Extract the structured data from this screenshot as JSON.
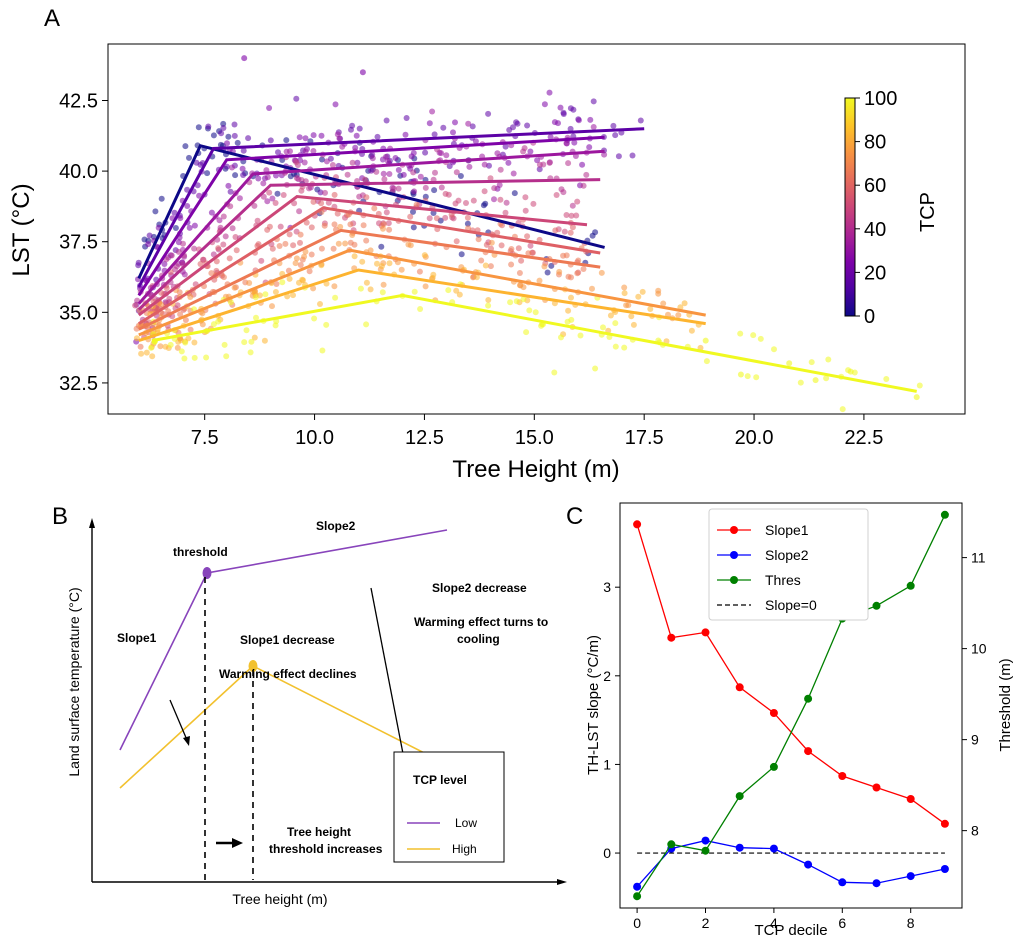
{
  "panels": {
    "a": "A",
    "b": "B",
    "c": "C"
  },
  "chart_data": [
    {
      "type": "scatter",
      "panel": "A",
      "xlabel": "Tree Height (m)",
      "ylabel": "LST (°C)",
      "xlim": [
        5.3,
        24.8
      ],
      "ylim": [
        31.4,
        44.5
      ],
      "xticks": [
        7.5,
        10.0,
        12.5,
        15.0,
        17.5,
        20.0,
        22.5
      ],
      "xtick_labels": [
        "7.5",
        "10.0",
        "12.5",
        "15.0",
        "17.5",
        "20.0",
        "22.5"
      ],
      "yticks": [
        32.5,
        35.0,
        37.5,
        40.0,
        42.5
      ],
      "ytick_labels": [
        "32.5",
        "35.0",
        "37.5",
        "40.0",
        "42.5"
      ],
      "colorbar": {
        "label": "TCP",
        "min": 0,
        "max": 100,
        "ticks": [
          0,
          20,
          40,
          60,
          80,
          100
        ],
        "colormap": "plasma"
      },
      "grid": false,
      "fit_lines": [
        {
          "tcp": 0,
          "color": "#0d0887",
          "points": [
            [
              6.0,
              36.2
            ],
            [
              7.4,
              40.9
            ],
            [
              16.6,
              37.3
            ]
          ]
        },
        {
          "tcp": 10,
          "color": "#5c01a6",
          "points": [
            [
              6.0,
              35.9
            ],
            [
              7.7,
              40.8
            ],
            [
              17.5,
              41.5
            ]
          ]
        },
        {
          "tcp": 20,
          "color": "#7e03a8",
          "points": [
            [
              6.0,
              35.6
            ],
            [
              8.0,
              40.4
            ],
            [
              16.6,
              41.2
            ]
          ]
        },
        {
          "tcp": 30,
          "color": "#9c179e",
          "points": [
            [
              6.0,
              35.3
            ],
            [
              8.6,
              39.9
            ],
            [
              16.6,
              40.7
            ]
          ]
        },
        {
          "tcp": 40,
          "color": "#b52f8c",
          "points": [
            [
              6.0,
              35.1
            ],
            [
              9.0,
              39.5
            ],
            [
              16.5,
              39.7
            ]
          ]
        },
        {
          "tcp": 50,
          "color": "#cc4778",
          "points": [
            [
              6.0,
              34.9
            ],
            [
              9.6,
              39.1
            ],
            [
              16.2,
              38.1
            ]
          ]
        },
        {
          "tcp": 60,
          "color": "#de5f65",
          "points": [
            [
              6.0,
              34.6
            ],
            [
              10.2,
              38.7
            ],
            [
              16.5,
              37.1
            ]
          ]
        },
        {
          "tcp": 70,
          "color": "#ed7953",
          "points": [
            [
              6.0,
              34.4
            ],
            [
              10.6,
              37.9
            ],
            [
              16.5,
              36.6
            ]
          ]
        },
        {
          "tcp": 80,
          "color": "#f89540",
          "points": [
            [
              6.0,
              34.2
            ],
            [
              10.8,
              37.2
            ],
            [
              18.9,
              34.9
            ]
          ]
        },
        {
          "tcp": 90,
          "color": "#fdb42f",
          "points": [
            [
              6.0,
              34.0
            ],
            [
              11.0,
              36.5
            ],
            [
              18.9,
              34.6
            ]
          ]
        },
        {
          "tcp": 100,
          "color": "#f0f921",
          "points": [
            [
              6.3,
              34.0
            ],
            [
              12.0,
              35.6
            ],
            [
              23.7,
              32.2
            ]
          ]
        }
      ],
      "sample_outlier_points": [
        [
          8.4,
          44.0
        ],
        [
          11.1,
          43.5
        ],
        [
          23.7,
          32.0
        ],
        [
          22.2,
          32.9
        ],
        [
          21.4,
          32.6
        ],
        [
          20.8,
          33.2
        ],
        [
          19.7,
          32.8
        ],
        [
          18.9,
          34.0
        ]
      ]
    },
    {
      "type": "schematic",
      "panel": "B",
      "xlabel": "Tree height (m)",
      "ylabel": "Land surface temperature (°C)",
      "lines": [
        {
          "name": "Low",
          "color": "#8844bb",
          "points": [
            [
              0.08,
              0.17
            ],
            [
              0.34,
              0.63
            ],
            [
              1.0,
              0.78
            ]
          ]
        },
        {
          "name": "High",
          "color": "#f2c12e",
          "points": [
            [
              0.08,
              0.05
            ],
            [
              0.47,
              0.34
            ],
            [
              1.0,
              0.07
            ]
          ]
        }
      ],
      "annotations": {
        "threshold": "threshold",
        "slope2": "Slope2",
        "slope1": "Slope1",
        "slope1_decrease": "Slope1 decrease",
        "warming_declines": "Warming effect declines",
        "slope2_decrease": "Slope2 decrease",
        "warming_turns_1": "Warming effect turns to",
        "warming_turns_2": "cooling",
        "th_increase_1": "Tree height",
        "th_increase_2": "threshold increases"
      },
      "legend": {
        "title": "TCP level",
        "items": [
          "Low",
          "High"
        ]
      }
    },
    {
      "type": "line",
      "panel": "C",
      "xlabel": "TCP decile",
      "ylabel_left": "TH-LST slope (°C/m)",
      "ylabel_right": "Threshold (m)",
      "x": [
        0,
        1,
        2,
        3,
        4,
        5,
        6,
        7,
        8,
        9
      ],
      "xlim": [
        -0.5,
        9.5
      ],
      "ylim_left": [
        -0.62,
        3.95
      ],
      "ylim_right": [
        7.15,
        11.6
      ],
      "xticks": [
        0,
        2,
        4,
        6,
        8
      ],
      "xtick_labels": [
        "0",
        "2",
        "4",
        "6",
        "8"
      ],
      "yticks_left": [
        0,
        1,
        2,
        3
      ],
      "ytick_labels_left": [
        "0",
        "1",
        "2",
        "3"
      ],
      "yticks_right": [
        8,
        9,
        10,
        11
      ],
      "ytick_labels_right": [
        "8",
        "9",
        "10",
        "11"
      ],
      "series": [
        {
          "name": "Slope1",
          "axis": "left",
          "color": "#ff0000",
          "values": [
            3.71,
            2.43,
            2.49,
            1.87,
            1.58,
            1.15,
            0.87,
            0.74,
            0.61,
            0.33
          ]
        },
        {
          "name": "Slope2",
          "axis": "left",
          "color": "#0000ff",
          "values": [
            -0.38,
            0.05,
            0.14,
            0.06,
            0.05,
            -0.13,
            -0.33,
            -0.34,
            -0.26,
            -0.18
          ]
        },
        {
          "name": "Thres",
          "axis": "right",
          "color": "#008000",
          "values": [
            7.28,
            7.85,
            7.78,
            8.38,
            8.7,
            9.45,
            10.33,
            10.47,
            10.69,
            11.47
          ]
        }
      ],
      "reference_line": {
        "name": "Slope=0",
        "y": 0,
        "style": "dashed",
        "color": "#000000"
      },
      "legend": [
        "Slope1",
        "Slope2",
        "Thres",
        "Slope=0"
      ]
    }
  ]
}
